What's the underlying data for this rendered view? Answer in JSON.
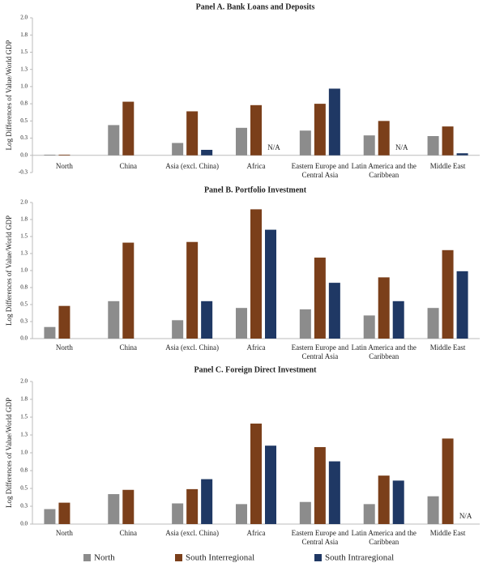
{
  "chart_data": [
    {
      "type": "bar",
      "title": "Panel A. Bank Loans and Deposits",
      "ylabel": "Log Differences of Value/World GDP",
      "categories": [
        "North",
        "China",
        "Asia (excl. China)",
        "Africa",
        "Eastern Europe and Central Asia",
        "Latin America and the Caribbean",
        "Middle East"
      ],
      "series": [
        {
          "name": "North",
          "color": "#8c8c8c",
          "values": [
            0.01,
            0.44,
            0.18,
            0.4,
            0.36,
            0.29,
            0.28
          ]
        },
        {
          "name": "South Interregional",
          "color": "#7b3f1a",
          "values": [
            0.01,
            0.78,
            0.64,
            0.73,
            0.75,
            0.5,
            0.42
          ]
        },
        {
          "name": "South Intraregional",
          "color": "#1f3864",
          "values": [
            null,
            null,
            0.08,
            null,
            0.97,
            null,
            0.03
          ],
          "value_labels": [
            null,
            null,
            null,
            "N/A",
            null,
            "N/A",
            null
          ]
        }
      ],
      "ylim": [
        -0.25,
        2
      ],
      "yticks": [
        {
          "value": -0.25,
          "label": "-0.3"
        },
        {
          "value": 0,
          "label": "0.0"
        },
        {
          "value": 0.25,
          "label": "0.3"
        },
        0.5,
        {
          "value": 0.75,
          "label": "0.8"
        },
        {
          "value": 1,
          "label": "1.0"
        },
        {
          "value": 1.25,
          "label": "1.3"
        },
        1.5,
        {
          "value": 1.75,
          "label": "1.8"
        },
        {
          "value": 2,
          "label": "2.0"
        }
      ]
    },
    {
      "type": "bar",
      "title": "Panel B. Portfolio Investment",
      "ylabel": "Log Differences of Value/World GDP",
      "categories": [
        "North",
        "China",
        "Asia (excl. China)",
        "Africa",
        "Eastern Europe and Central Asia",
        "Latin America and the Caribbean",
        "Middle East"
      ],
      "series": [
        {
          "name": "North",
          "color": "#8c8c8c",
          "values": [
            0.17,
            0.55,
            0.27,
            0.45,
            0.43,
            0.34,
            0.45
          ]
        },
        {
          "name": "South Interregional",
          "color": "#7b3f1a",
          "values": [
            0.48,
            1.41,
            1.42,
            1.9,
            1.19,
            0.9,
            1.3
          ]
        },
        {
          "name": "South Intraregional",
          "color": "#1f3864",
          "values": [
            null,
            null,
            0.55,
            1.6,
            0.82,
            0.55,
            0.99
          ]
        }
      ],
      "ylim": [
        0,
        2
      ],
      "yticks": [
        {
          "value": 0,
          "label": "0.0"
        },
        {
          "value": 0.25,
          "label": "0.3"
        },
        0.5,
        {
          "value": 0.75,
          "label": "0.8"
        },
        {
          "value": 1,
          "label": "1.0"
        },
        {
          "value": 1.25,
          "label": "1.3"
        },
        1.5,
        {
          "value": 1.75,
          "label": "1.8"
        },
        {
          "value": 2,
          "label": "2.0"
        }
      ]
    },
    {
      "type": "bar",
      "title": "Panel C. Foreign Direct Investment",
      "ylabel": "Log Differences of Value/World GDP",
      "categories": [
        "North",
        "China",
        "Asia (excl. China)",
        "Africa",
        "Eastern Europe and Central Asia",
        "Latin America and the Caribbean",
        "Middle East"
      ],
      "series": [
        {
          "name": "North",
          "color": "#8c8c8c",
          "values": [
            0.21,
            0.42,
            0.29,
            0.28,
            0.31,
            0.28,
            0.39
          ]
        },
        {
          "name": "South Interregional",
          "color": "#7b3f1a",
          "values": [
            0.3,
            0.48,
            0.49,
            1.41,
            1.08,
            0.68,
            1.2
          ]
        },
        {
          "name": "South Intraregional",
          "color": "#1f3864",
          "values": [
            null,
            null,
            0.63,
            1.1,
            0.88,
            0.61,
            null
          ],
          "value_labels": [
            null,
            null,
            null,
            null,
            null,
            null,
            "N/A"
          ]
        }
      ],
      "ylim": [
        0,
        2
      ],
      "yticks": [
        {
          "value": 0,
          "label": "0.0"
        },
        {
          "value": 0.25,
          "label": "0.3"
        },
        0.5,
        {
          "value": 0.75,
          "label": "0.8"
        },
        {
          "value": 1,
          "label": "1.0"
        },
        {
          "value": 1.25,
          "label": "1.3"
        },
        1.5,
        {
          "value": 1.75,
          "label": "1.8"
        },
        {
          "value": 2,
          "label": "2.0"
        }
      ]
    }
  ]
}
